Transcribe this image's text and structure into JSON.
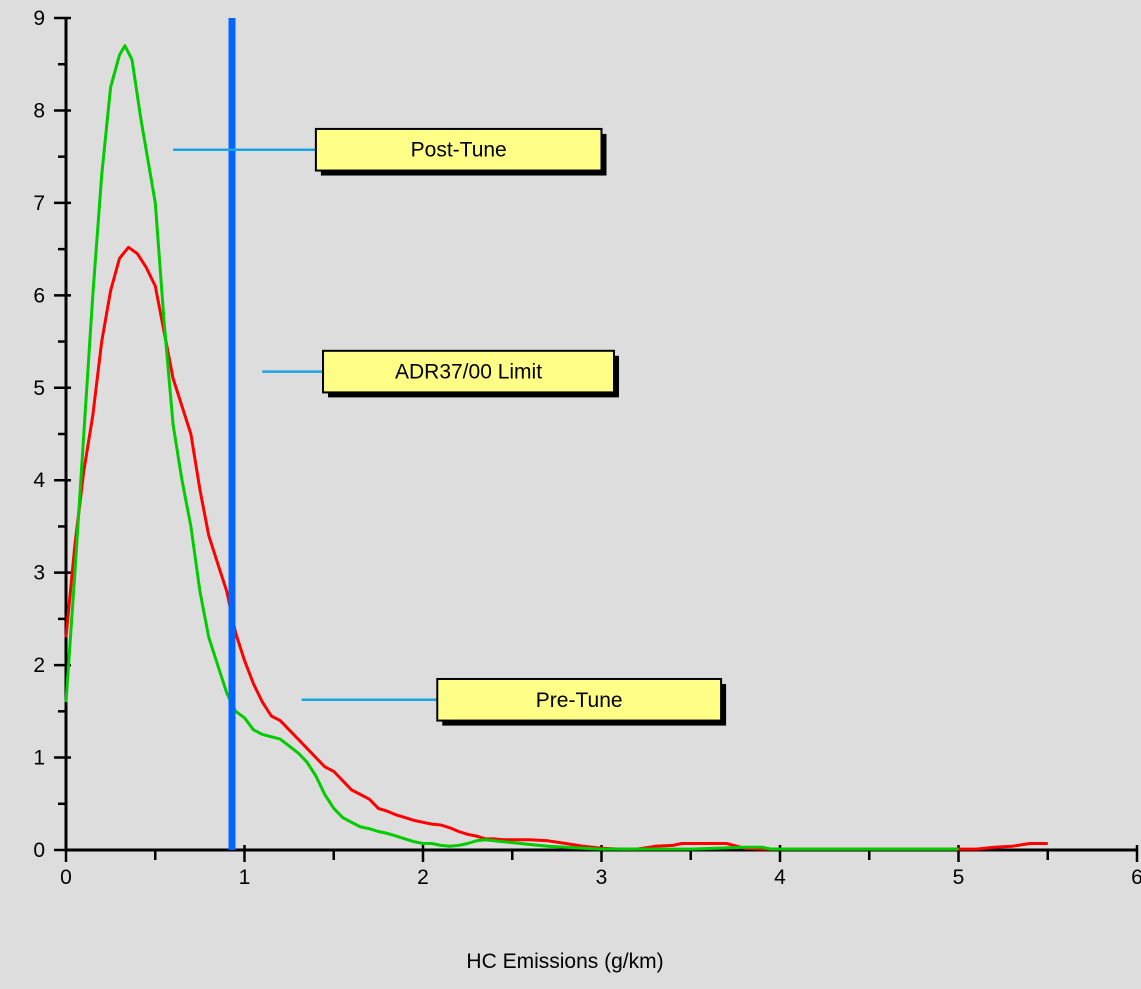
{
  "chart_data": {
    "type": "line",
    "title": "",
    "xlabel": "HC Emissions (g/km)",
    "ylabel": "",
    "xlim": [
      0,
      6
    ],
    "ylim": [
      0,
      9
    ],
    "x_ticks": [
      0,
      1,
      2,
      3,
      4,
      5,
      6
    ],
    "y_ticks": [
      0,
      1,
      2,
      3,
      4,
      5,
      6,
      7,
      8,
      9
    ],
    "grid": false,
    "series": [
      {
        "color": "#ff0000",
        "points": [
          [
            0,
            2.3
          ],
          [
            0.05,
            3.3
          ],
          [
            0.1,
            4.1
          ],
          [
            0.15,
            4.7
          ],
          [
            0.2,
            5.5
          ],
          [
            0.25,
            6.05
          ],
          [
            0.3,
            6.4
          ],
          [
            0.35,
            6.52
          ],
          [
            0.4,
            6.45
          ],
          [
            0.45,
            6.3
          ],
          [
            0.5,
            6.1
          ],
          [
            0.55,
            5.6
          ],
          [
            0.6,
            5.1
          ],
          [
            0.65,
            4.8
          ],
          [
            0.7,
            4.5
          ],
          [
            0.75,
            3.9
          ],
          [
            0.8,
            3.4
          ],
          [
            0.85,
            3.1
          ],
          [
            0.9,
            2.8
          ],
          [
            0.95,
            2.35
          ],
          [
            1.0,
            2.05
          ],
          [
            1.05,
            1.8
          ],
          [
            1.1,
            1.6
          ],
          [
            1.15,
            1.45
          ],
          [
            1.2,
            1.4
          ],
          [
            1.25,
            1.3
          ],
          [
            1.3,
            1.2
          ],
          [
            1.35,
            1.1
          ],
          [
            1.4,
            1.0
          ],
          [
            1.45,
            0.9
          ],
          [
            1.5,
            0.85
          ],
          [
            1.55,
            0.75
          ],
          [
            1.6,
            0.65
          ],
          [
            1.65,
            0.6
          ],
          [
            1.7,
            0.55
          ],
          [
            1.75,
            0.45
          ],
          [
            1.8,
            0.42
          ],
          [
            1.85,
            0.38
          ],
          [
            1.9,
            0.35
          ],
          [
            1.95,
            0.32
          ],
          [
            2.0,
            0.3
          ],
          [
            2.05,
            0.28
          ],
          [
            2.1,
            0.27
          ],
          [
            2.15,
            0.24
          ],
          [
            2.2,
            0.2
          ],
          [
            2.25,
            0.17
          ],
          [
            2.3,
            0.15
          ],
          [
            2.35,
            0.12
          ],
          [
            2.4,
            0.12
          ],
          [
            2.45,
            0.11
          ],
          [
            2.5,
            0.11
          ],
          [
            2.6,
            0.11
          ],
          [
            2.7,
            0.1
          ],
          [
            2.8,
            0.07
          ],
          [
            2.9,
            0.04
          ],
          [
            3.0,
            0.02
          ],
          [
            3.1,
            0.01
          ],
          [
            3.2,
            0.01
          ],
          [
            3.3,
            0.04
          ],
          [
            3.4,
            0.05
          ],
          [
            3.45,
            0.07
          ],
          [
            3.6,
            0.07
          ],
          [
            3.7,
            0.07
          ],
          [
            3.8,
            0.02
          ],
          [
            3.9,
            0.01
          ],
          [
            4.0,
            0.01
          ],
          [
            4.5,
            0.01
          ],
          [
            5.0,
            0.01
          ],
          [
            5.1,
            0.01
          ],
          [
            5.2,
            0.03
          ],
          [
            5.3,
            0.04
          ],
          [
            5.4,
            0.07
          ],
          [
            5.5,
            0.07
          ]
        ]
      },
      {
        "color": "#00cc00",
        "points": [
          [
            0,
            1.6
          ],
          [
            0.05,
            3.0
          ],
          [
            0.1,
            4.5
          ],
          [
            0.15,
            6.0
          ],
          [
            0.2,
            7.3
          ],
          [
            0.25,
            8.25
          ],
          [
            0.3,
            8.6
          ],
          [
            0.33,
            8.7
          ],
          [
            0.37,
            8.55
          ],
          [
            0.42,
            7.9
          ],
          [
            0.5,
            7.0
          ],
          [
            0.55,
            5.7
          ],
          [
            0.6,
            4.6
          ],
          [
            0.65,
            4.0
          ],
          [
            0.7,
            3.5
          ],
          [
            0.75,
            2.8
          ],
          [
            0.8,
            2.3
          ],
          [
            0.85,
            2.0
          ],
          [
            0.9,
            1.7
          ],
          [
            0.95,
            1.5
          ],
          [
            1.0,
            1.43
          ],
          [
            1.05,
            1.3
          ],
          [
            1.1,
            1.25
          ],
          [
            1.2,
            1.2
          ],
          [
            1.3,
            1.05
          ],
          [
            1.35,
            0.95
          ],
          [
            1.4,
            0.8
          ],
          [
            1.45,
            0.6
          ],
          [
            1.5,
            0.45
          ],
          [
            1.55,
            0.35
          ],
          [
            1.6,
            0.3
          ],
          [
            1.65,
            0.25
          ],
          [
            1.7,
            0.23
          ],
          [
            1.75,
            0.2
          ],
          [
            1.8,
            0.18
          ],
          [
            1.85,
            0.15
          ],
          [
            1.9,
            0.12
          ],
          [
            1.95,
            0.09
          ],
          [
            2.0,
            0.07
          ],
          [
            2.05,
            0.07
          ],
          [
            2.1,
            0.05
          ],
          [
            2.15,
            0.04
          ],
          [
            2.2,
            0.05
          ],
          [
            2.25,
            0.07
          ],
          [
            2.3,
            0.1
          ],
          [
            2.35,
            0.11
          ],
          [
            2.4,
            0.1
          ],
          [
            2.45,
            0.09
          ],
          [
            2.5,
            0.08
          ],
          [
            2.6,
            0.06
          ],
          [
            2.7,
            0.04
          ],
          [
            2.8,
            0.03
          ],
          [
            2.9,
            0.02
          ],
          [
            3.0,
            0.01
          ],
          [
            3.5,
            0.01
          ],
          [
            3.8,
            0.03
          ],
          [
            3.9,
            0.03
          ],
          [
            3.95,
            0.01
          ],
          [
            4.0,
            0.01
          ],
          [
            4.5,
            0.01
          ],
          [
            5.0,
            0.01
          ]
        ]
      },
      {
        "color": "#0066ff",
        "x": 0.93,
        "kind": "vertical-limit"
      }
    ],
    "annotations": [
      {
        "text": "Post-Tune",
        "points_to": [
          0.6,
          7.5
        ],
        "box_x": [
          1.4,
          3.0
        ],
        "box_y": [
          7.35,
          7.8
        ]
      },
      {
        "text": "ADR37/00 Limit",
        "points_to": [
          1.1,
          5.15
        ],
        "box_x": [
          1.44,
          3.07
        ],
        "box_y": [
          4.95,
          5.4
        ]
      },
      {
        "text": "Pre-Tune",
        "points_to": [
          1.32,
          1.6
        ],
        "box_x": [
          2.08,
          3.67
        ],
        "box_y": [
          1.4,
          1.85
        ]
      }
    ]
  }
}
